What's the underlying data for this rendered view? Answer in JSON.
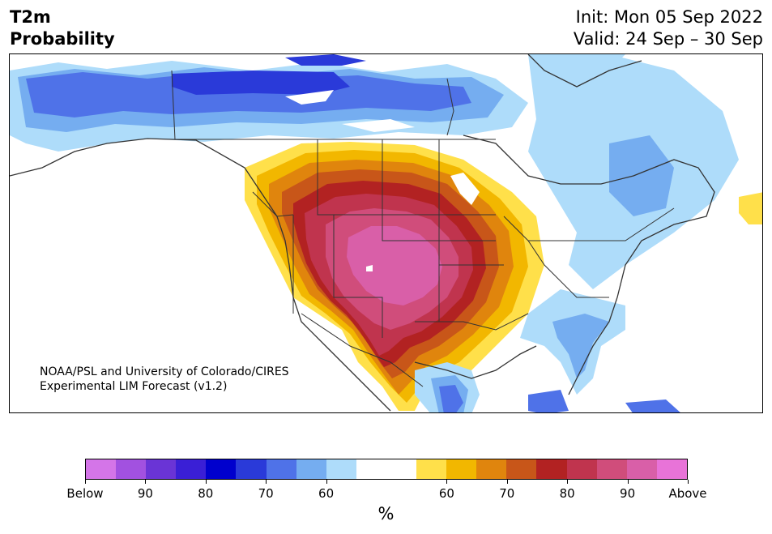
{
  "header": {
    "title_line1": "T2m",
    "title_line2": "Probability",
    "init_label": "Init: Mon 05 Sep 2022",
    "valid_label": "Valid: 24 Sep – 30 Sep"
  },
  "credit": {
    "line1": "NOAA/PSL and University of Colorado/CIRES",
    "line2": "Experimental LIM Forecast (v1.2)"
  },
  "colorbar": {
    "colors": [
      "#d475e8",
      "#a251e0",
      "#6a34d6",
      "#3a1fd6",
      "#0000cd",
      "#2a3ad9",
      "#4f72e8",
      "#75adf0",
      "#aedcfa",
      "#ffffff",
      "#ffffff",
      "#ffe04a",
      "#f2b700",
      "#e0850d",
      "#c85619",
      "#b22222",
      "#c0344e",
      "#d04d7b",
      "#d95fa8",
      "#e873d8"
    ],
    "labels": [
      "Below",
      "90",
      "80",
      "70",
      "60",
      "60",
      "70",
      "80",
      "90",
      "Above"
    ],
    "unit": "%"
  },
  "map": {
    "region": "North America",
    "land_border_color": "#333333",
    "features": [
      "warm-anomaly-western-us",
      "cold-anomaly-northern-canada",
      "cold-anomaly-eastern-canada",
      "cold-anomaly-southeast-us"
    ]
  }
}
